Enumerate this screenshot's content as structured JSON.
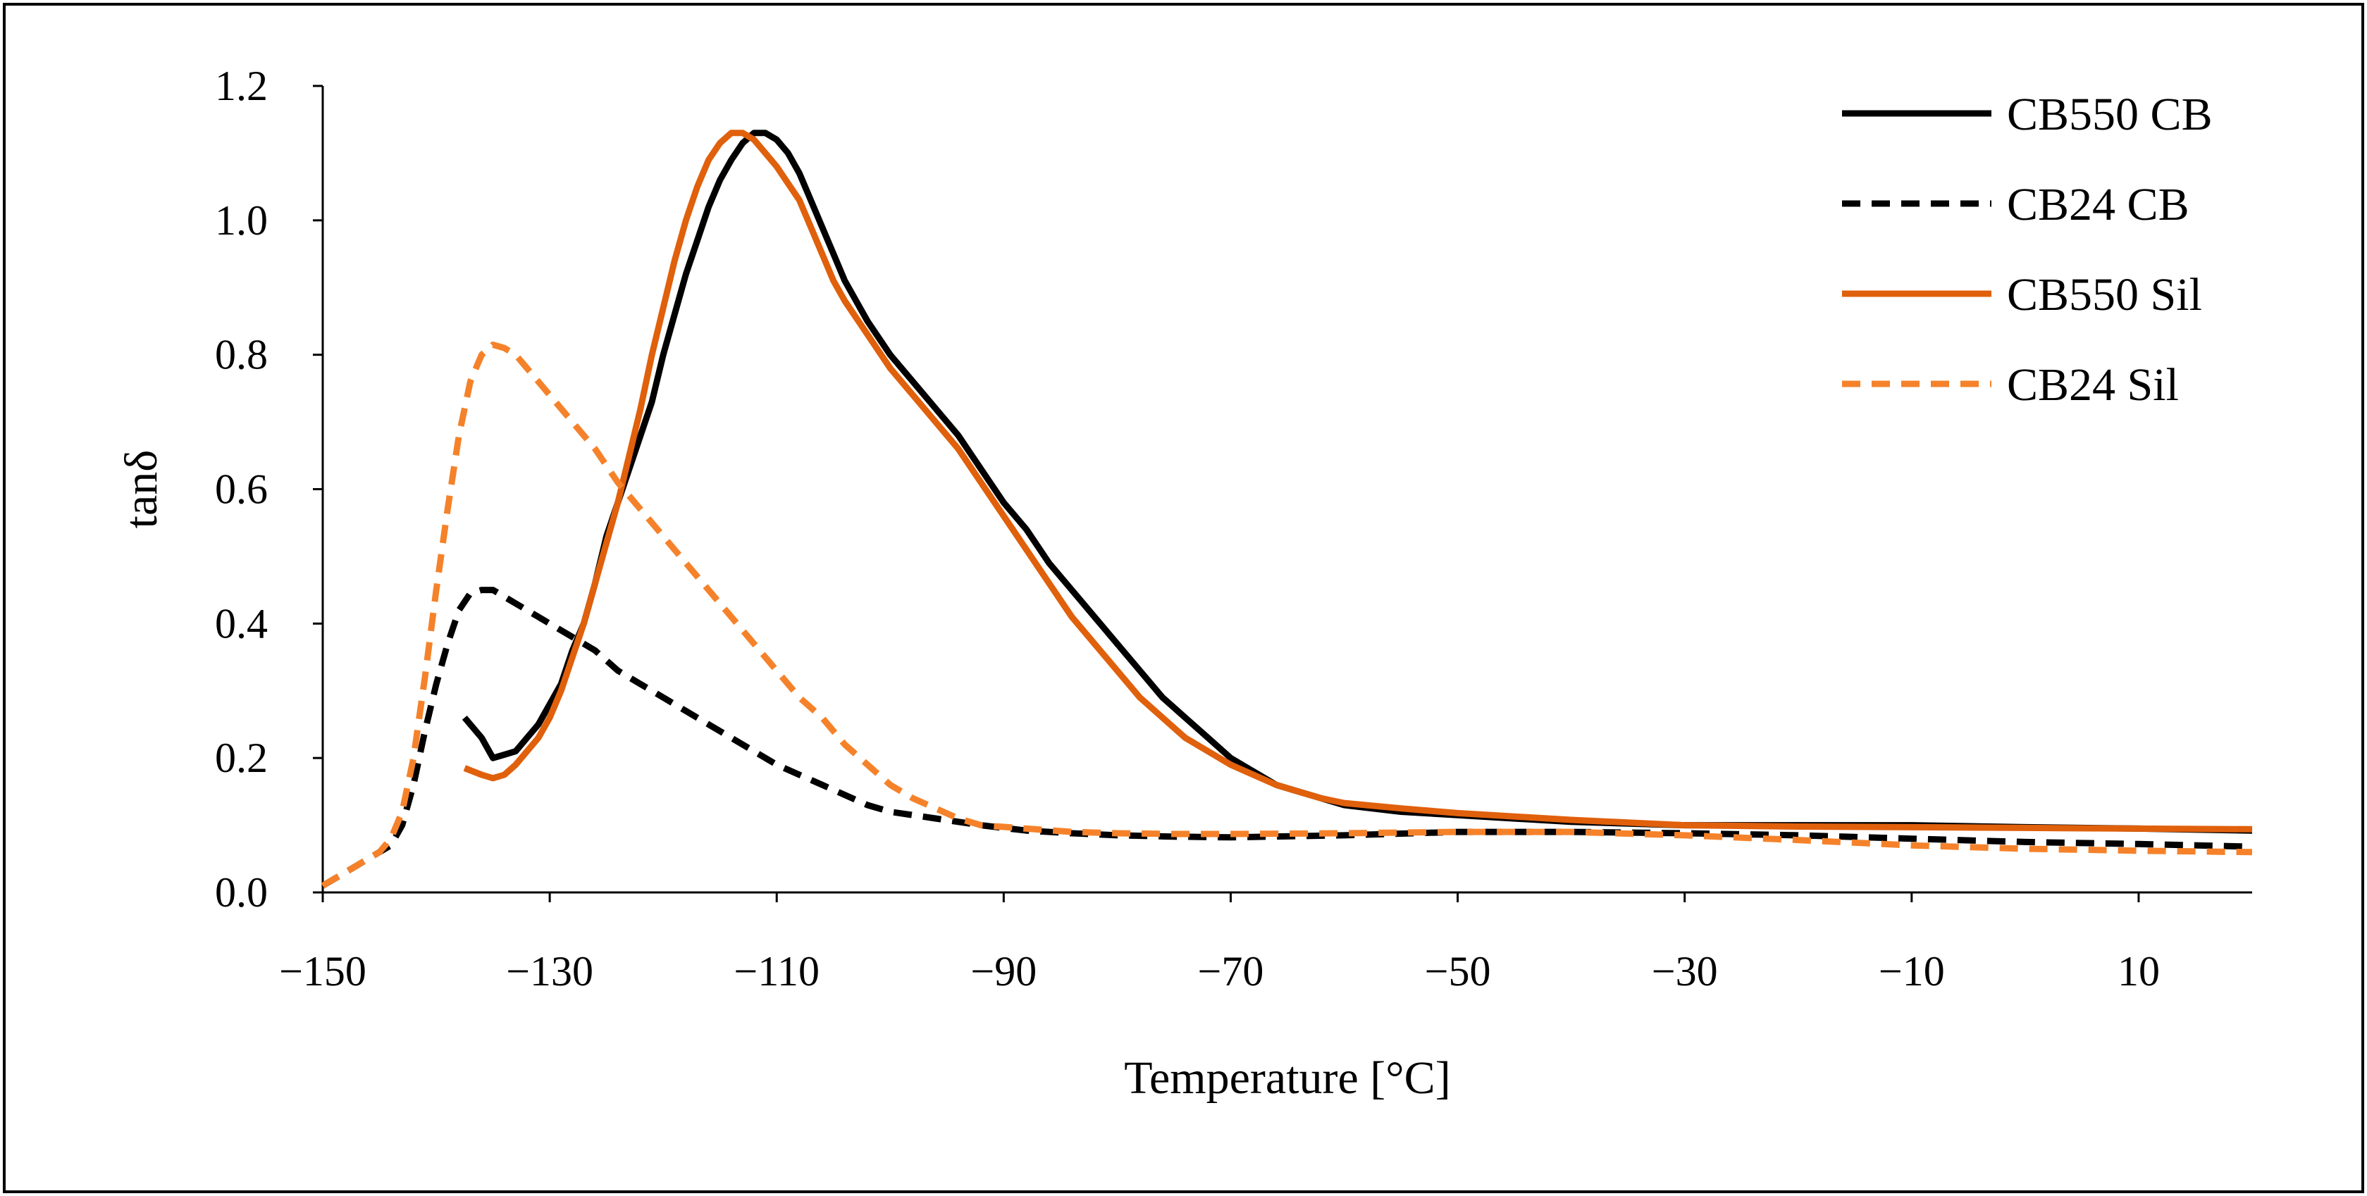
{
  "chart_data": {
    "type": "line",
    "title": "",
    "xlabel": "Temperature [°C]",
    "ylabel": "tanδ",
    "xlim": [
      -150,
      20
    ],
    "ylim": [
      0,
      1.2
    ],
    "x_ticks": [
      -150,
      -130,
      -110,
      -90,
      -70,
      -50,
      -30,
      -10,
      10
    ],
    "x_tick_labels": [
      "−150",
      "−130",
      "−110",
      "−90",
      "−70",
      "−50",
      "−30",
      "−10",
      "10"
    ],
    "y_ticks": [
      0,
      0.2,
      0.4,
      0.6,
      0.8,
      1.0,
      1.2
    ],
    "y_tick_labels": [
      "0.0",
      "0.2",
      "0.4",
      "0.6",
      "0.8",
      "1.0",
      "1.2"
    ],
    "grid": false,
    "legend_position": "top-right",
    "series": [
      {
        "name": "CB550 CB",
        "color": "#000000",
        "dash": "solid",
        "points": [
          [
            -137.5,
            0.26
          ],
          [
            -136,
            0.23
          ],
          [
            -135,
            0.2
          ],
          [
            -134,
            0.205
          ],
          [
            -133,
            0.21
          ],
          [
            -132,
            0.23
          ],
          [
            -131,
            0.25
          ],
          [
            -130,
            0.28
          ],
          [
            -129,
            0.31
          ],
          [
            -128,
            0.36
          ],
          [
            -127,
            0.4
          ],
          [
            -126,
            0.46
          ],
          [
            -125,
            0.53
          ],
          [
            -124,
            0.58
          ],
          [
            -123,
            0.63
          ],
          [
            -122,
            0.68
          ],
          [
            -121,
            0.73
          ],
          [
            -120,
            0.8
          ],
          [
            -119,
            0.86
          ],
          [
            -118,
            0.92
          ],
          [
            -117,
            0.97
          ],
          [
            -116,
            1.02
          ],
          [
            -115,
            1.06
          ],
          [
            -114,
            1.09
          ],
          [
            -113,
            1.115
          ],
          [
            -112,
            1.13
          ],
          [
            -111,
            1.13
          ],
          [
            -110,
            1.12
          ],
          [
            -109,
            1.1
          ],
          [
            -108,
            1.07
          ],
          [
            -107,
            1.03
          ],
          [
            -106,
            0.99
          ],
          [
            -105,
            0.95
          ],
          [
            -104,
            0.91
          ],
          [
            -102,
            0.85
          ],
          [
            -100,
            0.8
          ],
          [
            -98,
            0.76
          ],
          [
            -96,
            0.72
          ],
          [
            -94,
            0.68
          ],
          [
            -92,
            0.63
          ],
          [
            -90,
            0.58
          ],
          [
            -88,
            0.54
          ],
          [
            -86,
            0.49
          ],
          [
            -84,
            0.45
          ],
          [
            -82,
            0.41
          ],
          [
            -80,
            0.37
          ],
          [
            -78,
            0.33
          ],
          [
            -76,
            0.29
          ],
          [
            -74,
            0.26
          ],
          [
            -72,
            0.23
          ],
          [
            -70,
            0.2
          ],
          [
            -68,
            0.18
          ],
          [
            -66,
            0.16
          ],
          [
            -64,
            0.15
          ],
          [
            -62,
            0.14
          ],
          [
            -60,
            0.13
          ],
          [
            -55,
            0.12
          ],
          [
            -50,
            0.115
          ],
          [
            -40,
            0.105
          ],
          [
            -30,
            0.1
          ],
          [
            -20,
            0.1
          ],
          [
            -10,
            0.1
          ],
          [
            0,
            0.097
          ],
          [
            10,
            0.095
          ],
          [
            20,
            0.092
          ]
        ]
      },
      {
        "name": "CB24 CB",
        "color": "#000000",
        "dash": "dashed",
        "points": [
          [
            -150,
            0.01
          ],
          [
            -148,
            0.03
          ],
          [
            -146,
            0.05
          ],
          [
            -144,
            0.07
          ],
          [
            -143,
            0.1
          ],
          [
            -142,
            0.16
          ],
          [
            -141,
            0.24
          ],
          [
            -140,
            0.31
          ],
          [
            -139,
            0.37
          ],
          [
            -138,
            0.42
          ],
          [
            -137,
            0.445
          ],
          [
            -136,
            0.45
          ],
          [
            -135,
            0.45
          ],
          [
            -134,
            0.44
          ],
          [
            -133,
            0.43
          ],
          [
            -132,
            0.42
          ],
          [
            -130,
            0.4
          ],
          [
            -128,
            0.38
          ],
          [
            -126,
            0.36
          ],
          [
            -124,
            0.33
          ],
          [
            -122,
            0.31
          ],
          [
            -120,
            0.29
          ],
          [
            -118,
            0.27
          ],
          [
            -116,
            0.25
          ],
          [
            -114,
            0.23
          ],
          [
            -112,
            0.21
          ],
          [
            -110,
            0.19
          ],
          [
            -108,
            0.175
          ],
          [
            -106,
            0.16
          ],
          [
            -104,
            0.145
          ],
          [
            -102,
            0.13
          ],
          [
            -100,
            0.12
          ],
          [
            -96,
            0.11
          ],
          [
            -92,
            0.1
          ],
          [
            -88,
            0.092
          ],
          [
            -84,
            0.088
          ],
          [
            -80,
            0.085
          ],
          [
            -75,
            0.083
          ],
          [
            -70,
            0.082
          ],
          [
            -60,
            0.085
          ],
          [
            -50,
            0.09
          ],
          [
            -40,
            0.09
          ],
          [
            -30,
            0.088
          ],
          [
            -20,
            0.085
          ],
          [
            -10,
            0.08
          ],
          [
            0,
            0.075
          ],
          [
            10,
            0.072
          ],
          [
            20,
            0.068
          ]
        ]
      },
      {
        "name": "CB550 Sil",
        "color": "#E0600C",
        "dash": "solid",
        "points": [
          [
            -137.5,
            0.185
          ],
          [
            -136,
            0.175
          ],
          [
            -135,
            0.17
          ],
          [
            -134,
            0.175
          ],
          [
            -133,
            0.19
          ],
          [
            -132,
            0.21
          ],
          [
            -131,
            0.23
          ],
          [
            -130,
            0.26
          ],
          [
            -129,
            0.3
          ],
          [
            -128,
            0.35
          ],
          [
            -127,
            0.4
          ],
          [
            -126,
            0.46
          ],
          [
            -125,
            0.52
          ],
          [
            -124,
            0.58
          ],
          [
            -123,
            0.65
          ],
          [
            -122,
            0.72
          ],
          [
            -121,
            0.8
          ],
          [
            -120,
            0.87
          ],
          [
            -119,
            0.94
          ],
          [
            -118,
            1.0
          ],
          [
            -117,
            1.05
          ],
          [
            -116,
            1.09
          ],
          [
            -115,
            1.115
          ],
          [
            -114,
            1.13
          ],
          [
            -113,
            1.13
          ],
          [
            -112,
            1.12
          ],
          [
            -111,
            1.1
          ],
          [
            -110,
            1.08
          ],
          [
            -109,
            1.055
          ],
          [
            -108,
            1.03
          ],
          [
            -107,
            0.99
          ],
          [
            -106,
            0.95
          ],
          [
            -105,
            0.91
          ],
          [
            -104,
            0.88
          ],
          [
            -102,
            0.83
          ],
          [
            -100,
            0.78
          ],
          [
            -98,
            0.74
          ],
          [
            -96,
            0.7
          ],
          [
            -94,
            0.66
          ],
          [
            -92,
            0.61
          ],
          [
            -90,
            0.56
          ],
          [
            -88,
            0.51
          ],
          [
            -86,
            0.46
          ],
          [
            -84,
            0.41
          ],
          [
            -82,
            0.37
          ],
          [
            -80,
            0.33
          ],
          [
            -78,
            0.29
          ],
          [
            -76,
            0.26
          ],
          [
            -74,
            0.23
          ],
          [
            -72,
            0.21
          ],
          [
            -70,
            0.19
          ],
          [
            -68,
            0.175
          ],
          [
            -66,
            0.16
          ],
          [
            -64,
            0.15
          ],
          [
            -62,
            0.14
          ],
          [
            -60,
            0.133
          ],
          [
            -55,
            0.125
          ],
          [
            -50,
            0.118
          ],
          [
            -40,
            0.108
          ],
          [
            -30,
            0.1
          ],
          [
            -20,
            0.098
          ],
          [
            -10,
            0.097
          ],
          [
            0,
            0.096
          ],
          [
            10,
            0.095
          ],
          [
            20,
            0.094
          ]
        ]
      },
      {
        "name": "CB24 Sil",
        "color": "#F5822A",
        "dash": "dashed",
        "points": [
          [
            -150,
            0.01
          ],
          [
            -148,
            0.03
          ],
          [
            -146,
            0.05
          ],
          [
            -145,
            0.06
          ],
          [
            -144,
            0.08
          ],
          [
            -143,
            0.12
          ],
          [
            -142,
            0.2
          ],
          [
            -141,
            0.32
          ],
          [
            -140,
            0.45
          ],
          [
            -139,
            0.57
          ],
          [
            -138,
            0.68
          ],
          [
            -137,
            0.76
          ],
          [
            -136,
            0.8
          ],
          [
            -135,
            0.815
          ],
          [
            -134,
            0.81
          ],
          [
            -133,
            0.8
          ],
          [
            -132,
            0.78
          ],
          [
            -131,
            0.76
          ],
          [
            -130,
            0.74
          ],
          [
            -128,
            0.7
          ],
          [
            -126,
            0.66
          ],
          [
            -124,
            0.61
          ],
          [
            -122,
            0.57
          ],
          [
            -120,
            0.53
          ],
          [
            -118,
            0.49
          ],
          [
            -116,
            0.45
          ],
          [
            -114,
            0.41
          ],
          [
            -112,
            0.37
          ],
          [
            -110,
            0.33
          ],
          [
            -108,
            0.29
          ],
          [
            -106,
            0.26
          ],
          [
            -104,
            0.22
          ],
          [
            -102,
            0.19
          ],
          [
            -100,
            0.16
          ],
          [
            -98,
            0.14
          ],
          [
            -96,
            0.125
          ],
          [
            -94,
            0.11
          ],
          [
            -92,
            0.1
          ],
          [
            -88,
            0.095
          ],
          [
            -84,
            0.09
          ],
          [
            -80,
            0.088
          ],
          [
            -75,
            0.087
          ],
          [
            -70,
            0.087
          ],
          [
            -60,
            0.088
          ],
          [
            -50,
            0.09
          ],
          [
            -40,
            0.09
          ],
          [
            -30,
            0.085
          ],
          [
            -20,
            0.078
          ],
          [
            -10,
            0.07
          ],
          [
            0,
            0.065
          ],
          [
            10,
            0.062
          ],
          [
            20,
            0.06
          ]
        ]
      }
    ]
  }
}
